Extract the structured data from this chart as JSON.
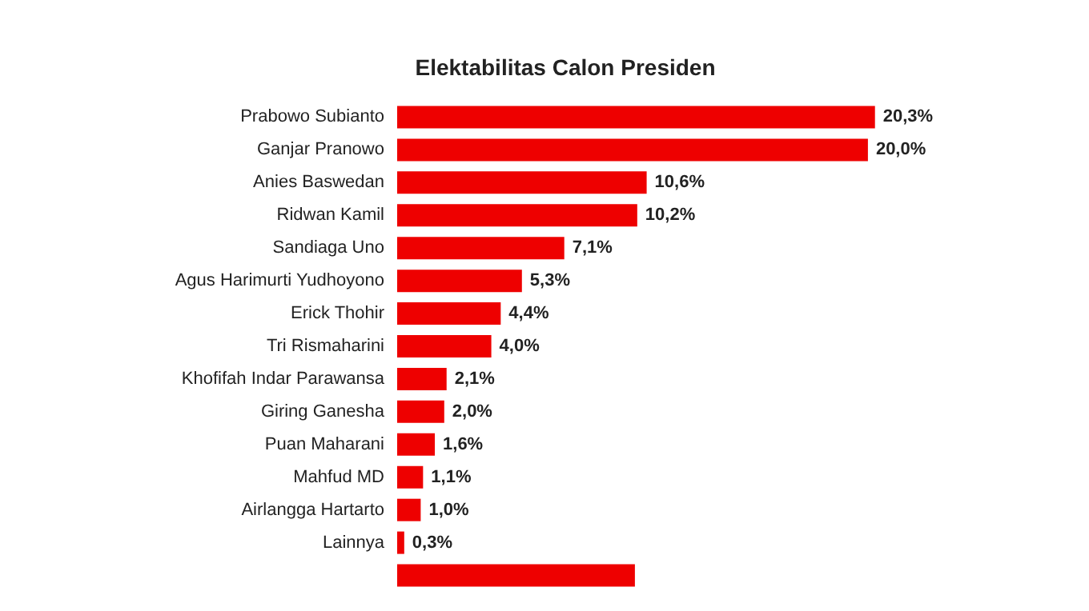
{
  "chart_data": {
    "type": "bar",
    "orientation": "horizontal",
    "title": "Elektabilitas Calon Presiden",
    "categories": [
      "Prabowo Subianto",
      "Ganjar Pranowo",
      "Anies Baswedan",
      "Ridwan Kamil",
      "Sandiaga Uno",
      "Agus Harimurti Yudhoyono",
      "Erick Thohir",
      "Tri Rismaharini",
      "Khofifah Indar Parawansa",
      "Giring Ganesha",
      "Puan Maharani",
      "Mahfud MD",
      "Airlangga Hartarto",
      "Lainnya",
      null
    ],
    "values": [
      20.3,
      20.0,
      10.6,
      10.2,
      7.1,
      5.3,
      4.4,
      4.0,
      2.1,
      2.0,
      1.6,
      1.1,
      1.0,
      0.3,
      10.1
    ],
    "value_labels": [
      "20,3%",
      "20,0%",
      "10,6%",
      "10,2%",
      "7,1%",
      "5,3%",
      "4,4%",
      "4,0%",
      "2,1%",
      "2,0%",
      "1,6%",
      "1,1%",
      "1,0%",
      "0,3%",
      null
    ],
    "color": "#ee0000"
  }
}
